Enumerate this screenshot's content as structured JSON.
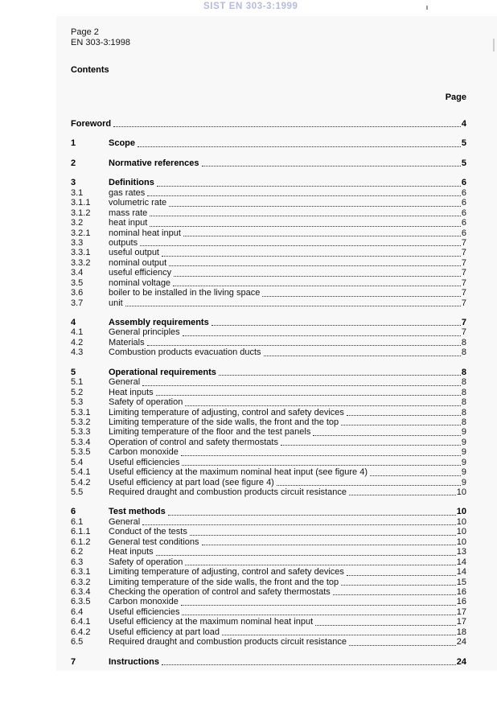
{
  "watermark": {
    "text": "SIST EN 303-3:1999",
    "color": "#b5b8ea"
  },
  "header": {
    "page_label": "Page 2",
    "standard_ref": "EN 303-3:1998"
  },
  "contents": {
    "title": "Contents",
    "page_column_label": "Page",
    "entries": [
      {
        "num": "",
        "title": "Foreword",
        "page": "4",
        "bold": true
      },
      {
        "num": "1",
        "title": "Scope",
        "page": "5",
        "bold": true
      },
      {
        "num": "2",
        "title": "Normative references",
        "page": "5",
        "bold": true
      },
      {
        "num": "3",
        "title": "Definitions",
        "page": "6",
        "bold": true
      },
      {
        "num": "3.1",
        "title": "gas rates",
        "page": "6",
        "bold": false
      },
      {
        "num": "3.1.1",
        "title": "volumetric rate",
        "page": "6",
        "bold": false
      },
      {
        "num": "3.1.2",
        "title": "mass rate",
        "page": "6",
        "bold": false
      },
      {
        "num": "3.2",
        "title": "heat input",
        "page": "6",
        "bold": false
      },
      {
        "num": "3.2.1",
        "title": "nominal heat input",
        "page": "6",
        "bold": false
      },
      {
        "num": "3.3",
        "title": "outputs",
        "page": "7",
        "bold": false
      },
      {
        "num": "3.3.1",
        "title": "useful output",
        "page": "7",
        "bold": false
      },
      {
        "num": "3.3.2",
        "title": "nominal output",
        "page": "7",
        "bold": false
      },
      {
        "num": "3.4",
        "title": "useful efficiency",
        "page": "7",
        "bold": false
      },
      {
        "num": "3.5",
        "title": "nominal voltage",
        "page": "7",
        "bold": false
      },
      {
        "num": "3.6",
        "title": "boiler to be installed in the living space",
        "page": "7",
        "bold": false
      },
      {
        "num": "3.7",
        "title": "unit",
        "page": "7",
        "bold": false
      },
      {
        "num": "4",
        "title": "Assembly requirements",
        "page": "7",
        "bold": true
      },
      {
        "num": "4.1",
        "title": "General principles",
        "page": "7",
        "bold": false
      },
      {
        "num": "4.2",
        "title": "Materials",
        "page": "8",
        "bold": false
      },
      {
        "num": "4.3",
        "title": "Combustion products evacuation ducts",
        "page": "8",
        "bold": false
      },
      {
        "num": "5",
        "title": "Operational requirements",
        "page": "8",
        "bold": true
      },
      {
        "num": "5.1",
        "title": "General",
        "page": "8",
        "bold": false
      },
      {
        "num": "5.2",
        "title": "Heat inputs",
        "page": "8",
        "bold": false
      },
      {
        "num": "5.3",
        "title": "Safety of operation",
        "page": "8",
        "bold": false
      },
      {
        "num": "5.3.1",
        "title": "Limiting temperature of adjusting, control and safety devices",
        "page": "8",
        "bold": false
      },
      {
        "num": "5.3.2",
        "title": "Limiting temperature of the side walls, the front and the top",
        "page": "8",
        "bold": false
      },
      {
        "num": "5.3.3",
        "title": "Limiting temperature of the floor and the test panels",
        "page": "9",
        "bold": false
      },
      {
        "num": "5.3.4",
        "title": "Operation of control and safety thermostats",
        "page": "9",
        "bold": false
      },
      {
        "num": "5.3.5",
        "title": "Carbon monoxide",
        "page": "9",
        "bold": false
      },
      {
        "num": "5.4",
        "title": "Useful efficiencies",
        "page": "9",
        "bold": false
      },
      {
        "num": "5.4.1",
        "title": "Useful efficiency at the maximum nominal heat input (see figure 4)",
        "page": "9",
        "bold": false
      },
      {
        "num": "5.4.2",
        "title": "Useful efficiency at part load (see figure 4)",
        "page": "9",
        "bold": false
      },
      {
        "num": "5.5",
        "title": "Required draught and combustion products circuit resistance",
        "page": "10",
        "bold": false
      },
      {
        "num": "6",
        "title": "Test methods",
        "page": "10",
        "bold": true
      },
      {
        "num": "6.1",
        "title": "General",
        "page": "10",
        "bold": false
      },
      {
        "num": "6.1.1",
        "title": "Conduct of the tests",
        "page": "10",
        "bold": false
      },
      {
        "num": "6.1.2",
        "title": "General test conditions",
        "page": "10",
        "bold": false
      },
      {
        "num": "6.2",
        "title": "Heat inputs",
        "page": "13",
        "bold": false
      },
      {
        "num": "6.3",
        "title": "Safety of operation",
        "page": "14",
        "bold": false
      },
      {
        "num": "6.3.1",
        "title": "Limiting temperature of adjusting, control and safety devices",
        "page": "14",
        "bold": false
      },
      {
        "num": "6.3.2",
        "title": "Limiting temperature of the side walls, the front and the top",
        "page": "15",
        "bold": false
      },
      {
        "num": "6.3.4",
        "title": "Checking the operation of control and safety thermostats",
        "page": "16",
        "bold": false
      },
      {
        "num": "6.3.5",
        "title": "Carbon monoxide",
        "page": "16",
        "bold": false
      },
      {
        "num": "6.4",
        "title": "Useful efficiencies",
        "page": "17",
        "bold": false
      },
      {
        "num": "6.4.1",
        "title": "Useful efficiency at the maximum nominal heat input",
        "page": "17",
        "bold": false
      },
      {
        "num": "6.4.2",
        "title": "Useful efficiency at part load",
        "page": "18",
        "bold": false
      },
      {
        "num": "6.5",
        "title": "Required draught and combustion products circuit resistance",
        "page": "24",
        "bold": false
      },
      {
        "num": "7",
        "title": "Instructions",
        "page": "24",
        "bold": true
      }
    ]
  }
}
